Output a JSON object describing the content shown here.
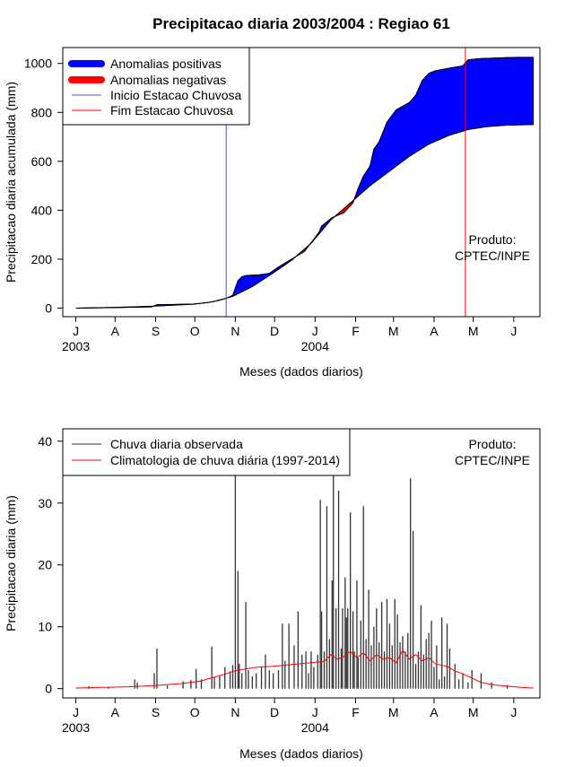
{
  "chart_data": [
    {
      "type": "area",
      "title": "Precipitacao diaria 2003/2004 : Regiao 61",
      "xlabel": "Meses (dados diarios)",
      "ylabel": "Precipitacao diaria acumulada (mm)",
      "x_unit": "days since 2003-06-01",
      "xlim": [
        -10,
        355
      ],
      "ylim": [
        -35,
        1065
      ],
      "y_ticks": [
        0,
        200,
        400,
        600,
        800,
        1000
      ],
      "month_ticks": [
        {
          "label": "J",
          "day": 0
        },
        {
          "label": "A",
          "day": 30
        },
        {
          "label": "S",
          "day": 61
        },
        {
          "label": "O",
          "day": 91
        },
        {
          "label": "N",
          "day": 122
        },
        {
          "label": "D",
          "day": 152
        },
        {
          "label": "J",
          "day": 183
        },
        {
          "label": "F",
          "day": 214
        },
        {
          "label": "M",
          "day": 243
        },
        {
          "label": "A",
          "day": 274
        },
        {
          "label": "M",
          "day": 304
        },
        {
          "label": "J",
          "day": 335
        }
      ],
      "year_labels": [
        {
          "label": "2003",
          "day": 0
        },
        {
          "label": "2004",
          "day": 183
        }
      ],
      "observed_cumulative": {
        "x": [
          0,
          20,
          40,
          58,
          62,
          75,
          90,
          100,
          110,
          115,
          120,
          124,
          127,
          130,
          140,
          148,
          155,
          165,
          175,
          186,
          188,
          196,
          205,
          212,
          216,
          220,
          225,
          228,
          232,
          238,
          245,
          250,
          255,
          260,
          265,
          270,
          275,
          280,
          290,
          296,
          300,
          310,
          320,
          330,
          340,
          350
        ],
        "y": [
          0,
          1,
          3,
          5,
          14,
          15,
          17,
          22,
          32,
          40,
          52,
          112,
          128,
          133,
          136,
          142,
          168,
          200,
          232,
          310,
          335,
          370,
          390,
          430,
          490,
          540,
          580,
          650,
          680,
          760,
          810,
          825,
          840,
          870,
          930,
          960,
          970,
          975,
          985,
          990,
          1015,
          1020,
          1022,
          1024,
          1025,
          1025
        ]
      },
      "climatology_cumulative": {
        "x": [
          0,
          30,
          60,
          90,
          105,
          120,
          135,
          150,
          165,
          180,
          195,
          210,
          225,
          240,
          255,
          270,
          285,
          300,
          315,
          330,
          350
        ],
        "y": [
          0,
          3,
          8,
          16,
          26,
          48,
          88,
          140,
          195,
          265,
          360,
          430,
          500,
          560,
          620,
          670,
          705,
          730,
          742,
          748,
          750
        ]
      },
      "season_start_day": 115,
      "season_end_day": 298,
      "legend": [
        {
          "label": "Anomalias positivas",
          "color": "#0000ff",
          "style": "thick"
        },
        {
          "label": "Anomalias negativas",
          "color": "#ff0000",
          "style": "thick"
        },
        {
          "label": "Inicio Estacao Chuvosa",
          "color": "#5555bb",
          "style": "thin"
        },
        {
          "label": "Fim Estacao Chuvosa",
          "color": "#ff0000",
          "style": "thin"
        }
      ],
      "note": [
        "Produto:",
        "CPTEC/INPE"
      ]
    },
    {
      "type": "bar",
      "xlabel": "Meses (dados diarios)",
      "ylabel": "Precipitacao diaria (mm)",
      "x_unit": "days since 2003-06-01",
      "xlim": [
        -10,
        355
      ],
      "ylim": [
        -1.5,
        42
      ],
      "y_ticks": [
        0,
        10,
        20,
        30,
        40
      ],
      "month_ticks": [
        {
          "label": "J",
          "day": 0
        },
        {
          "label": "A",
          "day": 30
        },
        {
          "label": "S",
          "day": 61
        },
        {
          "label": "O",
          "day": 91
        },
        {
          "label": "N",
          "day": 122
        },
        {
          "label": "D",
          "day": 152
        },
        {
          "label": "J",
          "day": 183
        },
        {
          "label": "F",
          "day": 214
        },
        {
          "label": "M",
          "day": 243
        },
        {
          "label": "A",
          "day": 274
        },
        {
          "label": "M",
          "day": 304
        },
        {
          "label": "J",
          "day": 335
        }
      ],
      "year_labels": [
        {
          "label": "2003",
          "day": 0
        },
        {
          "label": "2004",
          "day": 183
        }
      ],
      "observed_daily": {
        "x": [
          10,
          25,
          45,
          47,
          60,
          62,
          70,
          82,
          88,
          92,
          96,
          104,
          106,
          110,
          114,
          118,
          120,
          122,
          124,
          125,
          127,
          130,
          132,
          135,
          138,
          142,
          145,
          148,
          151,
          155,
          158,
          160,
          163,
          167,
          170,
          173,
          176,
          178,
          180,
          182,
          185,
          187,
          188,
          190,
          192,
          194,
          196,
          197,
          199,
          201,
          203,
          204,
          206,
          207,
          208,
          210,
          212,
          213,
          215,
          216,
          218,
          220,
          222,
          224,
          226,
          228,
          230,
          232,
          234,
          236,
          238,
          240,
          242,
          244,
          246,
          248,
          250,
          252,
          254,
          256,
          258,
          260,
          262,
          264,
          266,
          268,
          270,
          272,
          274,
          276,
          278,
          280,
          282,
          284,
          286,
          290,
          293,
          296,
          300,
          303,
          310,
          318,
          330
        ],
        "y": [
          0.4,
          0.3,
          1.5,
          1.0,
          2.5,
          6.5,
          0.5,
          1.2,
          1.4,
          3.2,
          1.5,
          6.8,
          1.8,
          2.0,
          3.5,
          2.8,
          3.8,
          35,
          19,
          4.0,
          2.5,
          14,
          3.0,
          2.0,
          2.5,
          3.5,
          5.5,
          3.0,
          2.5,
          3.0,
          10.5,
          4.5,
          10.5,
          7.0,
          12.5,
          5.5,
          6.0,
          2.5,
          6.0,
          3.5,
          5.5,
          30.5,
          12.5,
          6.0,
          29.5,
          8.0,
          17.5,
          35,
          13.0,
          32,
          6.5,
          13.0,
          18.0,
          11.5,
          13.0,
          28.5,
          12.5,
          6.0,
          17.5,
          5.0,
          11.0,
          29.5,
          8.0,
          16.0,
          7.0,
          10.0,
          13.0,
          7.5,
          14.0,
          6.0,
          14.5,
          10.5,
          7.0,
          14.5,
          12.0,
          7.5,
          8.5,
          6.0,
          9.0,
          34,
          25.5,
          4.0,
          6.0,
          13.5,
          5.5,
          8.0,
          9.0,
          11.0,
          3.5,
          7.0,
          1.5,
          11.5,
          2.0,
          10.5,
          6.5,
          4.0,
          1.5,
          2.5,
          1.0,
          3.0,
          2.5,
          1.0,
          0.6
        ]
      },
      "climatology_daily": {
        "x": [
          0,
          20,
          40,
          60,
          80,
          95,
          105,
          115,
          122,
          130,
          140,
          150,
          160,
          170,
          180,
          190,
          195,
          200,
          205,
          210,
          215,
          220,
          225,
          230,
          235,
          240,
          245,
          250,
          255,
          260,
          265,
          270,
          275,
          280,
          285,
          290,
          295,
          300,
          305,
          310,
          320,
          330,
          340,
          350
        ],
        "y": [
          0.1,
          0.2,
          0.3,
          0.5,
          0.8,
          1.2,
          1.8,
          2.4,
          2.9,
          3.2,
          3.5,
          3.6,
          3.8,
          4.0,
          4.2,
          4.4,
          5.5,
          4.8,
          5.2,
          6.0,
          5.0,
          5.8,
          4.5,
          5.5,
          4.8,
          5.0,
          4.2,
          6.2,
          4.8,
          5.5,
          4.5,
          5.0,
          4.0,
          3.8,
          3.5,
          2.8,
          2.5,
          2.0,
          1.5,
          1.0,
          0.6,
          0.4,
          0.2,
          0.1
        ]
      },
      "legend": [
        {
          "label": "Chuva diaria observada",
          "color": "#333333"
        },
        {
          "label": "Climatologia de chuva diária (1997-2014)",
          "color": "#ff0000"
        }
      ],
      "note": [
        "Produto:",
        "CPTEC/INPE"
      ]
    }
  ]
}
